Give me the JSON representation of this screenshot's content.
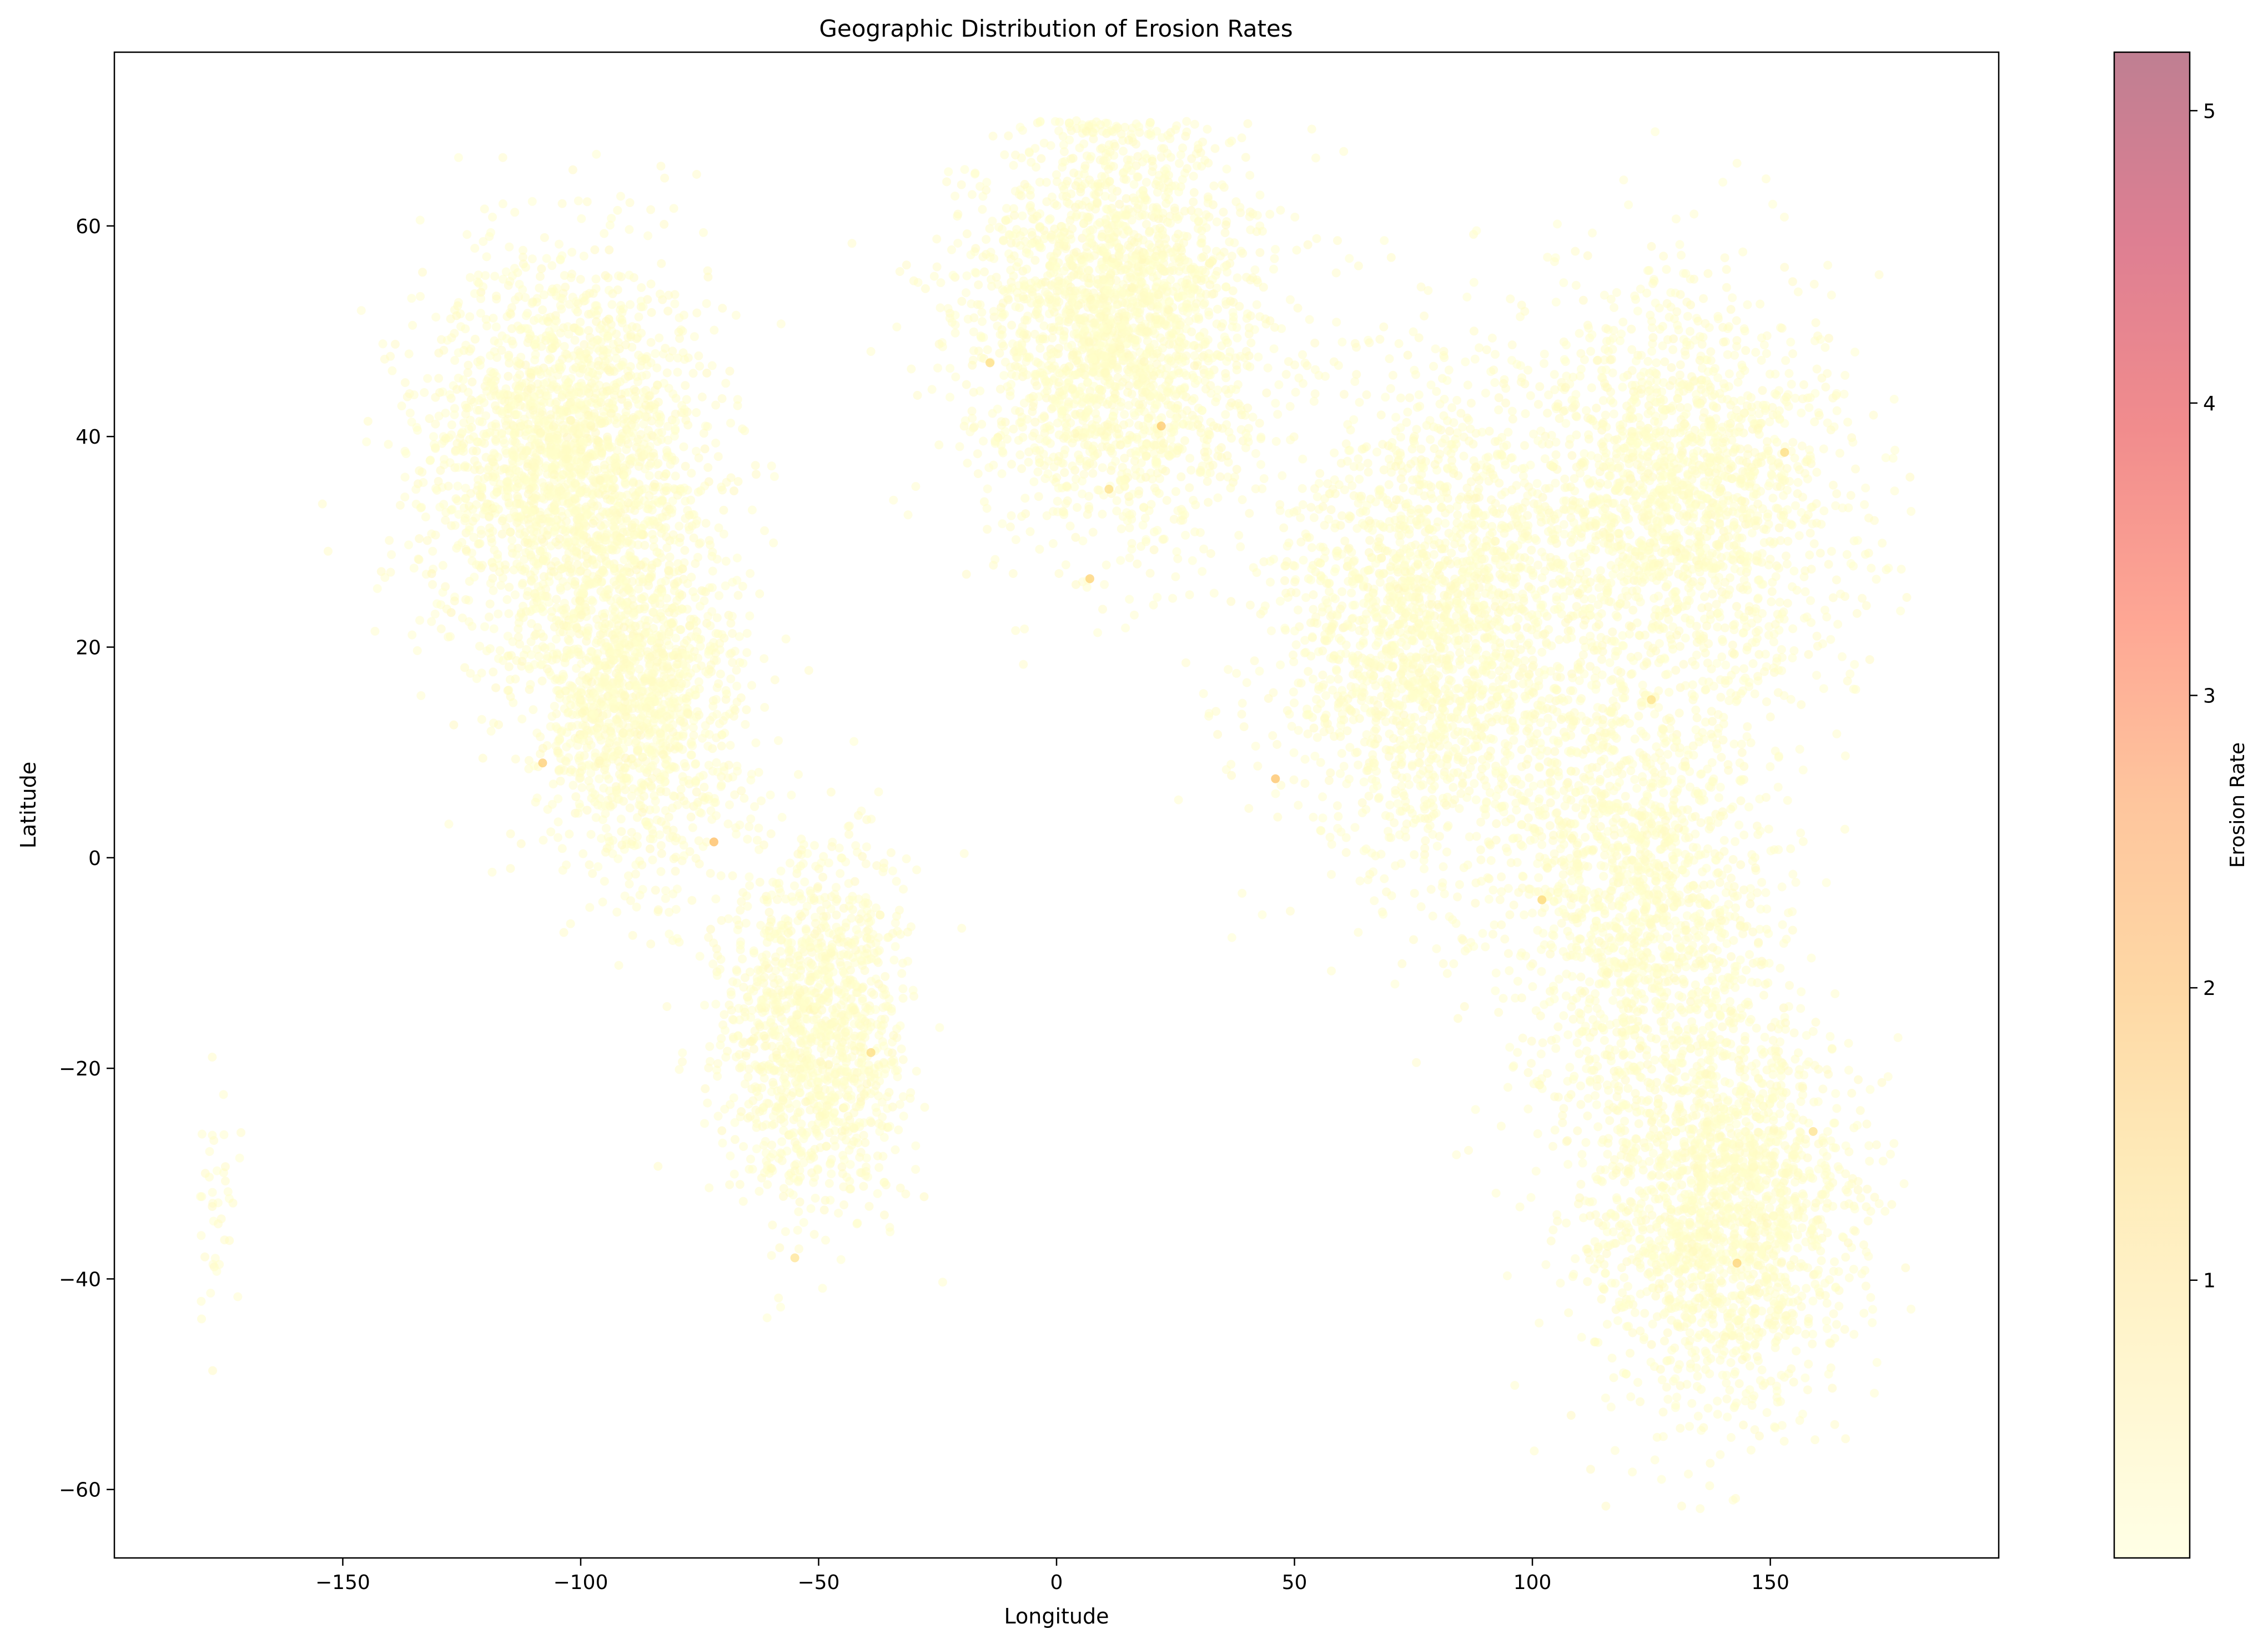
{
  "chart_data": {
    "type": "scatter",
    "title": "Geographic Distribution of Erosion Rates",
    "xlabel": "Longitude",
    "ylabel": "Latitude",
    "xlim": [
      -198,
      198
    ],
    "ylim": [
      -66.5,
      76.5
    ],
    "xticks": [
      -150,
      -100,
      -50,
      0,
      50,
      100,
      150
    ],
    "xtick_labels": [
      "−150",
      "−100",
      "−50",
      "0",
      "50",
      "100",
      "150"
    ],
    "yticks": [
      -60,
      -40,
      -20,
      0,
      20,
      40,
      60
    ],
    "ytick_labels": [
      "−60",
      "−40",
      "−20",
      "0",
      "20",
      "40",
      "60"
    ],
    "grid": false,
    "legend": "none",
    "colormap": "YlOrRd",
    "alpha": 0.5,
    "colorbar": {
      "label": "Erosion Rate",
      "range": [
        0.05,
        5.2
      ],
      "ticks": [
        1,
        2,
        3,
        4,
        5
      ],
      "tick_labels": [
        "1",
        "2",
        "3",
        "4",
        "5"
      ],
      "colors": [
        "#ffffcc",
        "#ffeda0",
        "#fed976",
        "#feb24c",
        "#fd8d3c",
        "#fc4e2a",
        "#e31a1c",
        "#bd0026",
        "#800026"
      ]
    },
    "clusters": [
      {
        "center": [
          -103,
          38
        ],
        "spread": [
          15,
          9.5
        ],
        "count": 2200
      },
      {
        "center": [
          -88,
          15
        ],
        "spread": [
          11,
          8
        ],
        "count": 1300
      },
      {
        "center": [
          -51,
          -16
        ],
        "spread": [
          10,
          8.5
        ],
        "count": 1300
      },
      {
        "center": [
          12,
          50
        ],
        "spread": [
          15,
          10
        ],
        "count": 2400
      },
      {
        "center": [
          80,
          22
        ],
        "spread": [
          17,
          12
        ],
        "count": 2200
      },
      {
        "center": [
          132,
          34
        ],
        "spread": [
          17,
          10
        ],
        "count": 1800
      },
      {
        "center": [
          122,
          -4
        ],
        "spread": [
          14,
          11
        ],
        "count": 1500
      },
      {
        "center": [
          140,
          -33
        ],
        "spread": [
          14,
          9.5
        ],
        "count": 1900
      },
      {
        "center": [
          -177,
          -33
        ],
        "spread": [
          2.5,
          6
        ],
        "count": 45
      }
    ],
    "highlight_points": [
      {
        "x": -72,
        "y": 1.5,
        "value": 1.9
      },
      {
        "x": 46,
        "y": 7.5,
        "value": 1.8
      },
      {
        "x": 22,
        "y": 41,
        "value": 1.7
      },
      {
        "x": -108,
        "y": 9,
        "value": 1.6
      },
      {
        "x": 7,
        "y": 26.5,
        "value": 1.5
      },
      {
        "x": 143,
        "y": -38.5,
        "value": 1.5
      },
      {
        "x": 102,
        "y": -4,
        "value": 1.4
      },
      {
        "x": -39,
        "y": -18.5,
        "value": 1.3
      },
      {
        "x": 11,
        "y": 35,
        "value": 1.2
      },
      {
        "x": 153,
        "y": 38.5,
        "value": 1.3
      },
      {
        "x": -14,
        "y": 47,
        "value": 1.2
      },
      {
        "x": 159,
        "y": -26,
        "value": 1.1
      },
      {
        "x": 125,
        "y": 15,
        "value": 1.1
      },
      {
        "x": -55,
        "y": -38,
        "value": 1.0
      }
    ]
  }
}
